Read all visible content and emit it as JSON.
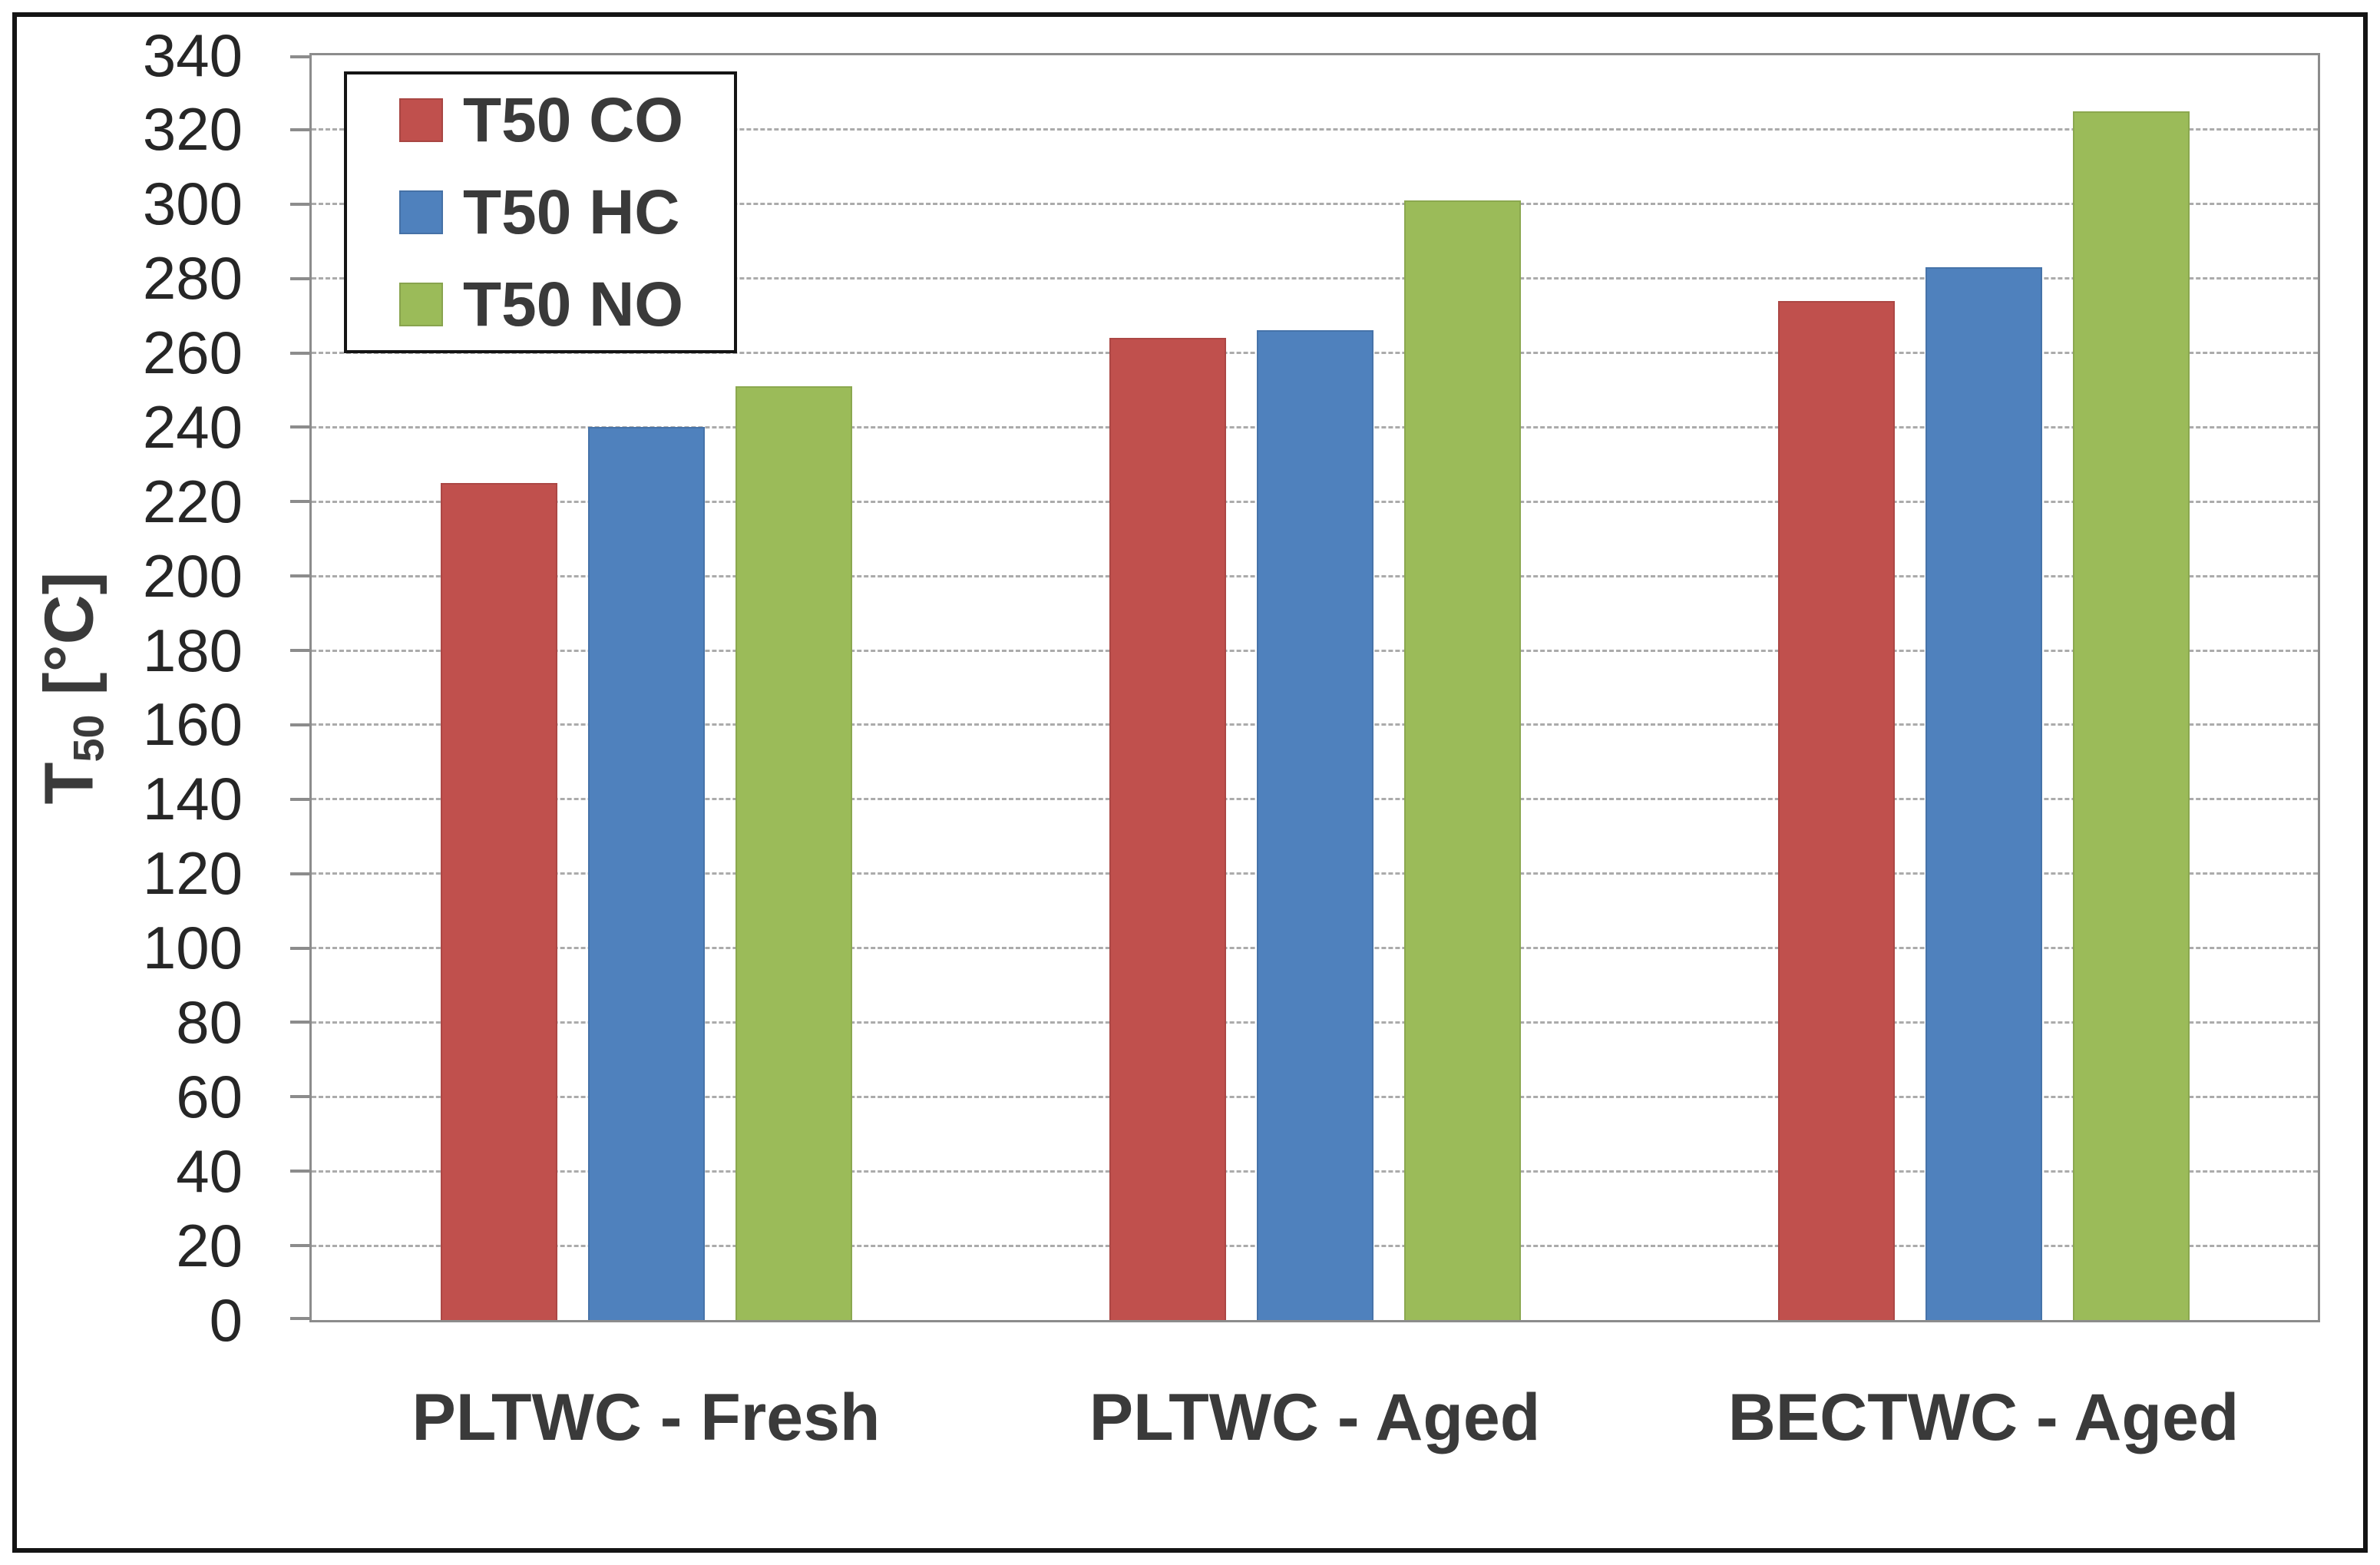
{
  "chart_data": {
    "type": "bar",
    "title": "",
    "categories": [
      "PLTWC - Fresh",
      "PLTWC - Aged",
      "BECTWC - Aged"
    ],
    "series": [
      {
        "name": "T50 CO",
        "color": "#C0504D",
        "values": [
          225,
          264,
          274
        ]
      },
      {
        "name": "T50 HC",
        "color": "#4F81BD",
        "values": [
          240,
          266,
          283
        ]
      },
      {
        "name": "T50 NO",
        "color": "#9BBB59",
        "values": [
          251,
          301,
          325
        ]
      }
    ],
    "ylabel": "T50 [°C]",
    "ylabel_base": "T",
    "ylabel_sub": "50",
    "ylabel_unit": "[°C]",
    "ylim": [
      0,
      340
    ],
    "ytick_step": 20,
    "yticks": [
      0,
      20,
      40,
      60,
      80,
      100,
      120,
      140,
      160,
      180,
      200,
      220,
      240,
      260,
      280,
      300,
      320,
      340
    ],
    "grid": "horizontal-dashed",
    "legend_position": "top-left-inside",
    "colors": {
      "frame": "#8c8c8c",
      "gridline": "#ababab",
      "text": "#3a3a3a",
      "tick_text": "#262626",
      "border": "#141414",
      "background": "#ffffff"
    }
  }
}
